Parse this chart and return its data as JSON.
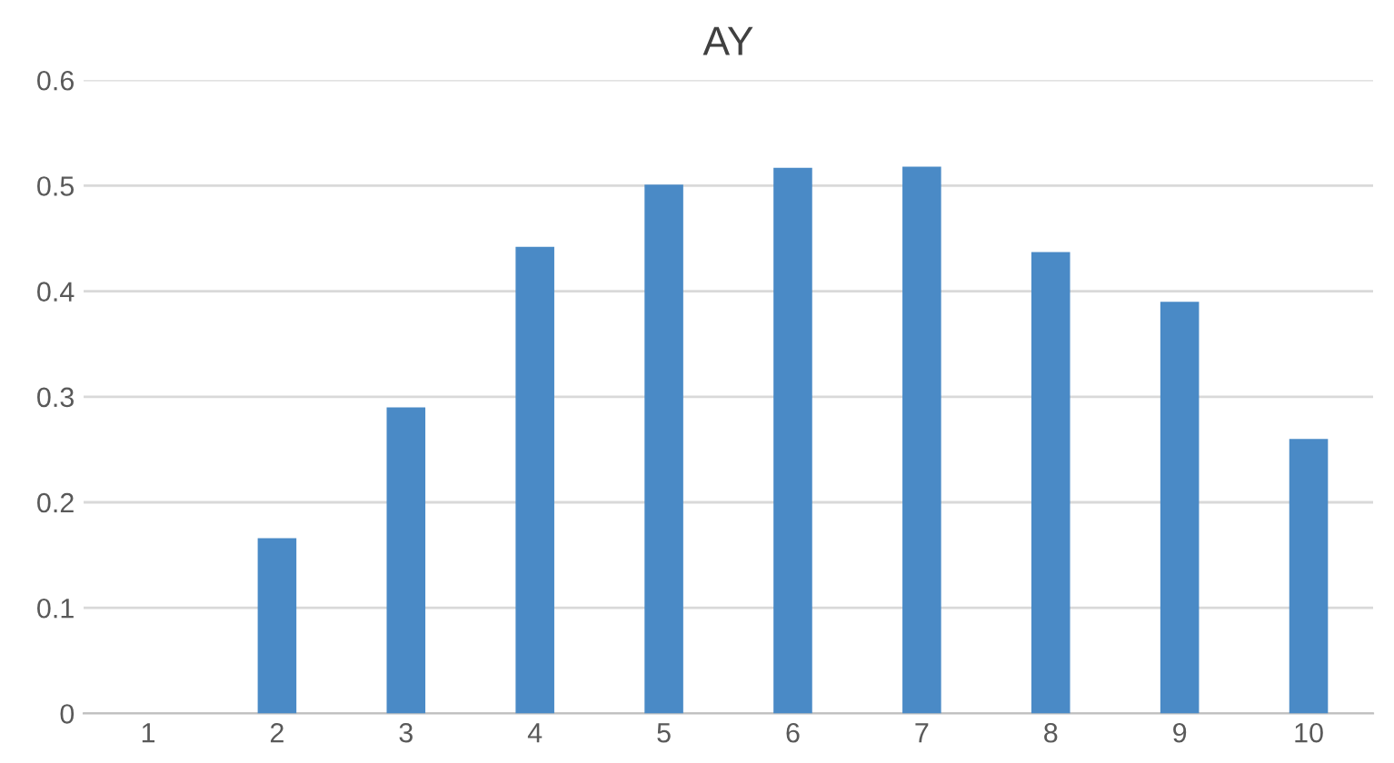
{
  "chart_data": {
    "type": "bar",
    "title": "AY",
    "categories": [
      "1",
      "2",
      "3",
      "4",
      "5",
      "6",
      "7",
      "8",
      "9",
      "10"
    ],
    "values": [
      0,
      0.166,
      0.29,
      0.442,
      0.501,
      0.517,
      0.518,
      0.437,
      0.39,
      0.26
    ],
    "color": "#4a8ac6",
    "ylim": [
      0,
      0.6
    ],
    "yticks": [
      0,
      0.1,
      0.2,
      0.3,
      0.4,
      0.5,
      0.6
    ],
    "grid": "y",
    "legend": false
  }
}
